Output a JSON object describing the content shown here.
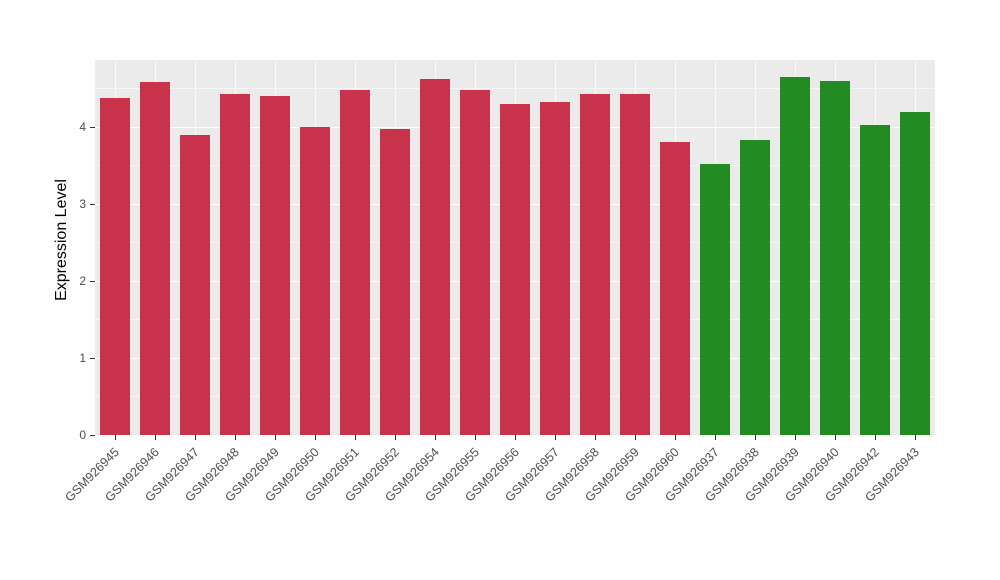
{
  "chart_data": {
    "type": "bar",
    "title": "",
    "xlabel": "",
    "ylabel": "Expression Level",
    "categories": [
      "GSM926945",
      "GSM926946",
      "GSM926947",
      "GSM926948",
      "GSM926949",
      "GSM926950",
      "GSM926951",
      "GSM926952",
      "GSM926954",
      "GSM926955",
      "GSM926956",
      "GSM926957",
      "GSM926958",
      "GSM926959",
      "GSM926960",
      "GSM926937",
      "GSM926938",
      "GSM926939",
      "GSM926940",
      "GSM926942",
      "GSM926943"
    ],
    "values": [
      4.38,
      4.58,
      3.9,
      4.43,
      4.4,
      4.0,
      4.48,
      3.98,
      4.62,
      4.48,
      4.3,
      4.32,
      4.43,
      4.43,
      3.8,
      3.52,
      3.83,
      4.65,
      4.6,
      4.02,
      4.2
    ],
    "bar_colors": [
      "#C9324B",
      "#C9324B",
      "#C9324B",
      "#C9324B",
      "#C9324B",
      "#C9324B",
      "#C9324B",
      "#C9324B",
      "#C9324B",
      "#C9324B",
      "#C9324B",
      "#C9324B",
      "#C9324B",
      "#C9324B",
      "#C9324B",
      "#228B22",
      "#228B22",
      "#228B22",
      "#228B22",
      "#228B22",
      "#228B22"
    ],
    "group_colors": {
      "red_group": "#C9324B",
      "green_group": "#228B22"
    },
    "yticks": [
      0,
      1,
      2,
      3,
      4
    ],
    "ytick_labels": [
      "0",
      "1",
      "2",
      "3",
      "4"
    ],
    "ylim": [
      0,
      4.87
    ],
    "grid": "on",
    "legend_position": "none",
    "panel_background": "#EBEBEB",
    "gridline_color": "#FFFFFF"
  }
}
